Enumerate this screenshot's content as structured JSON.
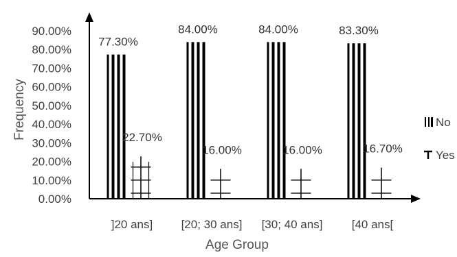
{
  "chart_data": {
    "type": "bar",
    "title": "",
    "xlabel": "Age Group",
    "ylabel": "Frequency",
    "categories": [
      "]20 ans]",
      "[20; 30 ans]",
      "[30; 40 ans]",
      "[40 ans["
    ],
    "series": [
      {
        "name": "No",
        "values": [
          77.3,
          84.0,
          84.0,
          83.3
        ],
        "labels": [
          "77.30%",
          "84.00%",
          "84.00%",
          "83.30%"
        ]
      },
      {
        "name": "Yes",
        "values": [
          22.7,
          16.0,
          16.0,
          16.7
        ],
        "labels": [
          "22.70%",
          "16.00%",
          "16.00%",
          "16.70%"
        ]
      }
    ],
    "ylim": [
      0,
      90
    ],
    "yticks": [
      "0.00%",
      "10.00%",
      "20.00%",
      "30.00%",
      "40.00%",
      "50.00%",
      "60.00%",
      "70.00%",
      "80.00%",
      "90.00%"
    ],
    "grid": false,
    "legend_position": "right"
  }
}
